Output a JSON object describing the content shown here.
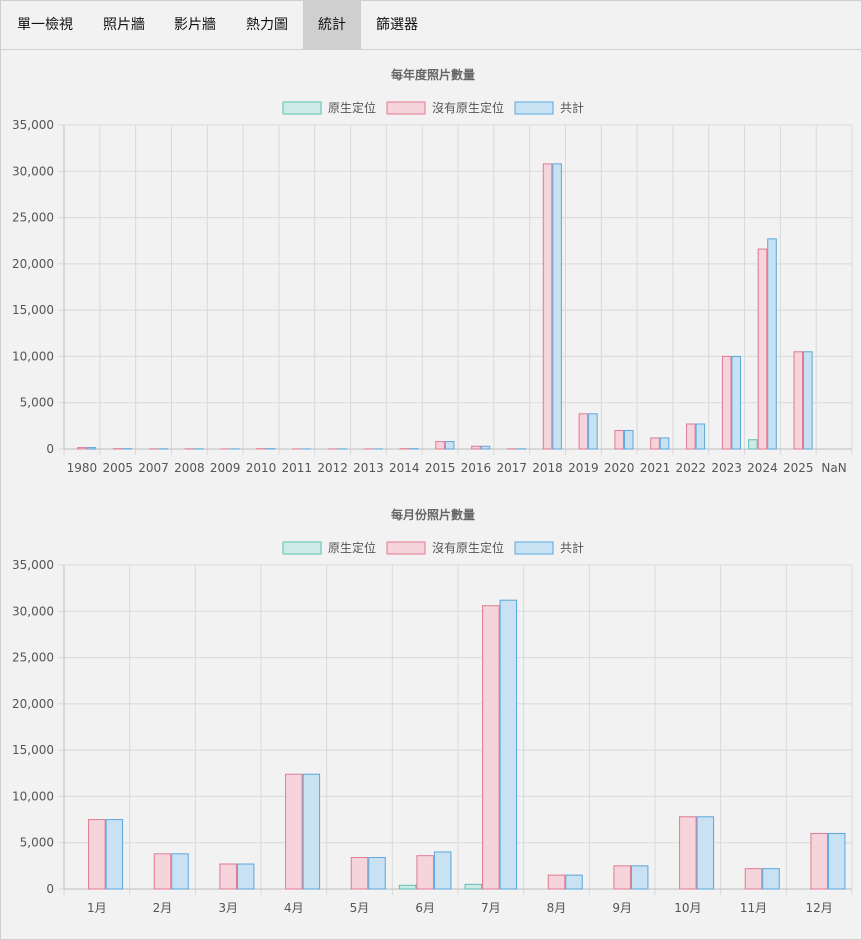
{
  "tabs": [
    {
      "label": "單一檢視",
      "active": false
    },
    {
      "label": "照片牆",
      "active": false
    },
    {
      "label": "影片牆",
      "active": false
    },
    {
      "label": "熱力圖",
      "active": false
    },
    {
      "label": "統計",
      "active": true
    },
    {
      "label": "篩選器",
      "active": false
    }
  ],
  "colors": {
    "native_fill": "#cdeae7",
    "native_stroke": "#5fbfb4",
    "nonnative_fill": "#f6d4dc",
    "nonnative_stroke": "#e07a93",
    "total_fill": "#c9e2f3",
    "total_stroke": "#5aa6dc",
    "grid": "#d9d9d9",
    "text": "#555555",
    "title": "#666666"
  },
  "chart_data": [
    {
      "type": "bar",
      "title": "每年度照片數量",
      "categories": [
        "1980",
        "2005",
        "2007",
        "2008",
        "2009",
        "2010",
        "2011",
        "2012",
        "2013",
        "2014",
        "2015",
        "2016",
        "2017",
        "2018",
        "2019",
        "2020",
        "2021",
        "2022",
        "2023",
        "2024",
        "2025",
        "NaN"
      ],
      "series": [
        {
          "name": "原生定位",
          "values": [
            0,
            0,
            0,
            0,
            0,
            0,
            0,
            0,
            0,
            0,
            0,
            0,
            0,
            0,
            0,
            0,
            0,
            0,
            0,
            1000,
            0,
            0
          ]
        },
        {
          "name": "沒有原生定位",
          "values": [
            150,
            30,
            20,
            20,
            10,
            30,
            10,
            10,
            10,
            30,
            800,
            300,
            20,
            30800,
            3800,
            2000,
            1200,
            2700,
            10000,
            21600,
            10500,
            0
          ]
        },
        {
          "name": "共計",
          "values": [
            150,
            30,
            20,
            20,
            10,
            30,
            10,
            10,
            10,
            30,
            800,
            300,
            20,
            30800,
            3800,
            2000,
            1200,
            2700,
            10000,
            22700,
            10500,
            0
          ]
        }
      ],
      "ylim": [
        0,
        35000
      ],
      "yticks": [
        "35,000",
        "30,000",
        "25,000",
        "20,000",
        "15,000",
        "10,000",
        "5,000",
        "0"
      ],
      "legend": "top-center",
      "grid": true
    },
    {
      "type": "bar",
      "title": "每月份照片數量",
      "categories": [
        "1月",
        "2月",
        "3月",
        "4月",
        "5月",
        "6月",
        "7月",
        "8月",
        "9月",
        "10月",
        "11月",
        "12月"
      ],
      "series": [
        {
          "name": "原生定位",
          "values": [
            0,
            0,
            0,
            0,
            0,
            400,
            500,
            0,
            0,
            0,
            0,
            0
          ]
        },
        {
          "name": "沒有原生定位",
          "values": [
            7500,
            3800,
            2700,
            12400,
            3400,
            3600,
            30600,
            1500,
            2500,
            7800,
            2200,
            6000
          ]
        },
        {
          "name": "共計",
          "values": [
            7500,
            3800,
            2700,
            12400,
            3400,
            4000,
            31200,
            1500,
            2500,
            7800,
            2200,
            6000
          ]
        }
      ],
      "ylim": [
        0,
        35000
      ],
      "yticks": [
        "35,000",
        "30,000",
        "25,000",
        "20,000",
        "15,000",
        "10,000",
        "5,000",
        "0"
      ],
      "legend": "top-center",
      "grid": true
    }
  ]
}
